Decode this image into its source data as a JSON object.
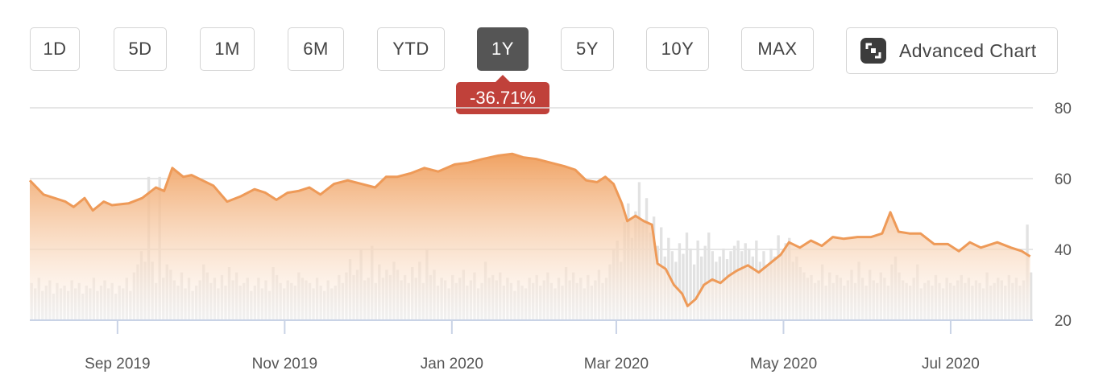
{
  "ranges": [
    {
      "label": "1D"
    },
    {
      "label": "5D"
    },
    {
      "label": "1M"
    },
    {
      "label": "6M"
    },
    {
      "label": "YTD"
    },
    {
      "label": "1Y"
    },
    {
      "label": "5Y"
    },
    {
      "label": "10Y"
    },
    {
      "label": "MAX"
    }
  ],
  "active_range": "1Y",
  "advanced_chart": {
    "label": "Advanced Chart",
    "icon": "expand-icon"
  },
  "change_badge": {
    "text": "-36.71%",
    "color": "#c0413a"
  },
  "colors": {
    "line": "#ee9a58",
    "fill_top": "#f0a262",
    "volume": "#e2e2e2",
    "grid": "#dddddd",
    "axis": "#c9d3e6"
  },
  "chart_data": {
    "type": "area",
    "title": "",
    "xlabel": "",
    "ylabel": "",
    "ylim": [
      20,
      80
    ],
    "y_ticks": [
      80,
      60,
      40,
      20
    ],
    "x_tick_labels": [
      "Sep 2019",
      "Nov 2019",
      "Jan 2020",
      "Mar 2020",
      "May 2020",
      "Jul 2020"
    ],
    "x_range": [
      "2019-07-31",
      "2020-07-31"
    ],
    "x_ticks": [
      "2019-09-01",
      "2019-11-01",
      "2020-01-01",
      "2020-03-01",
      "2020-05-01",
      "2020-07-01"
    ],
    "grid": true,
    "series": [
      {
        "points": [
          [
            "2019-07-31",
            59.5
          ],
          [
            "2019-08-05",
            55.5
          ],
          [
            "2019-08-09",
            54.5
          ],
          [
            "2019-08-13",
            53.5
          ],
          [
            "2019-08-16",
            52
          ],
          [
            "2019-08-20",
            54.5
          ],
          [
            "2019-08-23",
            51
          ],
          [
            "2019-08-27",
            53.5
          ],
          [
            "2019-08-30",
            52.5
          ],
          [
            "2019-09-05",
            53
          ],
          [
            "2019-09-10",
            54.5
          ],
          [
            "2019-09-15",
            57.5
          ],
          [
            "2019-09-18",
            56.5
          ],
          [
            "2019-09-21",
            63
          ],
          [
            "2019-09-25",
            60.5
          ],
          [
            "2019-09-28",
            61
          ],
          [
            "2019-10-02",
            59.5
          ],
          [
            "2019-10-06",
            58
          ],
          [
            "2019-10-11",
            53.5
          ],
          [
            "2019-10-16",
            55
          ],
          [
            "2019-10-21",
            57
          ],
          [
            "2019-10-25",
            56
          ],
          [
            "2019-10-29",
            54
          ],
          [
            "2019-11-02",
            56
          ],
          [
            "2019-11-06",
            56.5
          ],
          [
            "2019-11-10",
            57.5
          ],
          [
            "2019-11-14",
            55.5
          ],
          [
            "2019-11-19",
            58.5
          ],
          [
            "2019-11-24",
            59.5
          ],
          [
            "2019-11-29",
            58.5
          ],
          [
            "2019-12-04",
            57.5
          ],
          [
            "2019-12-08",
            60.5
          ],
          [
            "2019-12-12",
            60.5
          ],
          [
            "2019-12-17",
            61.5
          ],
          [
            "2019-12-22",
            63
          ],
          [
            "2019-12-27",
            62
          ],
          [
            "2020-01-02",
            64
          ],
          [
            "2020-01-07",
            64.5
          ],
          [
            "2020-01-12",
            65.5
          ],
          [
            "2020-01-18",
            66.5
          ],
          [
            "2020-01-23",
            67
          ],
          [
            "2020-01-27",
            66
          ],
          [
            "2020-02-01",
            65.5
          ],
          [
            "2020-02-06",
            64.5
          ],
          [
            "2020-02-11",
            63.5
          ],
          [
            "2020-02-15",
            62.5
          ],
          [
            "2020-02-19",
            59.5
          ],
          [
            "2020-02-23",
            59
          ],
          [
            "2020-02-26",
            60.5
          ],
          [
            "2020-02-29",
            58.5
          ],
          [
            "2020-03-03",
            53
          ],
          [
            "2020-03-05",
            48
          ],
          [
            "2020-03-08",
            49.5
          ],
          [
            "2020-03-11",
            48
          ],
          [
            "2020-03-14",
            47
          ],
          [
            "2020-03-16",
            36
          ],
          [
            "2020-03-19",
            34.5
          ],
          [
            "2020-03-22",
            30
          ],
          [
            "2020-03-25",
            27.5
          ],
          [
            "2020-03-27",
            24
          ],
          [
            "2020-03-30",
            26
          ],
          [
            "2020-04-02",
            30
          ],
          [
            "2020-04-05",
            31.5
          ],
          [
            "2020-04-08",
            30.5
          ],
          [
            "2020-04-11",
            32.5
          ],
          [
            "2020-04-14",
            34
          ],
          [
            "2020-04-18",
            35.5
          ],
          [
            "2020-04-22",
            33.5
          ],
          [
            "2020-04-26",
            36
          ],
          [
            "2020-04-30",
            38.5
          ],
          [
            "2020-05-03",
            42
          ],
          [
            "2020-05-07",
            40.5
          ],
          [
            "2020-05-11",
            42.5
          ],
          [
            "2020-05-15",
            41
          ],
          [
            "2020-05-19",
            43.5
          ],
          [
            "2020-05-23",
            43
          ],
          [
            "2020-05-28",
            43.5
          ],
          [
            "2020-06-02",
            43.5
          ],
          [
            "2020-06-06",
            44.5
          ],
          [
            "2020-06-09",
            50.5
          ],
          [
            "2020-06-12",
            45
          ],
          [
            "2020-06-16",
            44.5
          ],
          [
            "2020-06-20",
            44.5
          ],
          [
            "2020-06-25",
            41.5
          ],
          [
            "2020-06-30",
            41.5
          ],
          [
            "2020-07-04",
            39.5
          ],
          [
            "2020-07-08",
            42
          ],
          [
            "2020-07-12",
            40.5
          ],
          [
            "2020-07-18",
            42
          ],
          [
            "2020-07-23",
            40.5
          ],
          [
            "2020-07-27",
            39.5
          ],
          [
            "2020-07-30",
            38
          ]
        ]
      }
    ],
    "volume": [
      14,
      12,
      16,
      11,
      13,
      15,
      10,
      14,
      12,
      13,
      11,
      15,
      12,
      14,
      10,
      13,
      12,
      16,
      11,
      13,
      15,
      12,
      14,
      10,
      13,
      12,
      16,
      11,
      18,
      21,
      26,
      22,
      54,
      22,
      14,
      54,
      16,
      21,
      19,
      15,
      13,
      18,
      12,
      16,
      11,
      13,
      15,
      21,
      18,
      14,
      16,
      12,
      17,
      13,
      20,
      15,
      18,
      13,
      14,
      16,
      11,
      13,
      16,
      12,
      15,
      11,
      20,
      17,
      14,
      12,
      15,
      14,
      13,
      18,
      16,
      15,
      14,
      12,
      16,
      13,
      11,
      15,
      12,
      13,
      17,
      14,
      18,
      23,
      17,
      19,
      27,
      15,
      16,
      28,
      14,
      21,
      16,
      19,
      17,
      22,
      19,
      15,
      17,
      14,
      20,
      16,
      22,
      14,
      27,
      17,
      19,
      13,
      16,
      15,
      12,
      17,
      14,
      16,
      19,
      13,
      15,
      18,
      12,
      14,
      22,
      16,
      17,
      15,
      18,
      13,
      16,
      14,
      11,
      15,
      13,
      12,
      16,
      14,
      17,
      13,
      15,
      18,
      14,
      12,
      16,
      13,
      20,
      15,
      18,
      14,
      16,
      12,
      17,
      13,
      15,
      19,
      14,
      16,
      21,
      27,
      30,
      22,
      37,
      44,
      31,
      41,
      52,
      38,
      46,
      33,
      39,
      28,
      35,
      24,
      31,
      26,
      22,
      29,
      25,
      33,
      27,
      21,
      30,
      24,
      28,
      33,
      26,
      22,
      24,
      27,
      23,
      26,
      28,
      30,
      26,
      29,
      27,
      24,
      30,
      22,
      26,
      21,
      27,
      24,
      32,
      25,
      29,
      31,
      22,
      24,
      20,
      18,
      16,
      17,
      14,
      15,
      21,
      13,
      18,
      14,
      17,
      16,
      13,
      15,
      19,
      14,
      22,
      16,
      13,
      19,
      15,
      14,
      18,
      16,
      13,
      21,
      24,
      18,
      15,
      14,
      13,
      16,
      21,
      12,
      14,
      15,
      13,
      17,
      14,
      12,
      16,
      14,
      13,
      15,
      17,
      14,
      16,
      13,
      15,
      14,
      12,
      18,
      13,
      14,
      16,
      15,
      13,
      17,
      14,
      16,
      13,
      15,
      36,
      18
    ]
  }
}
